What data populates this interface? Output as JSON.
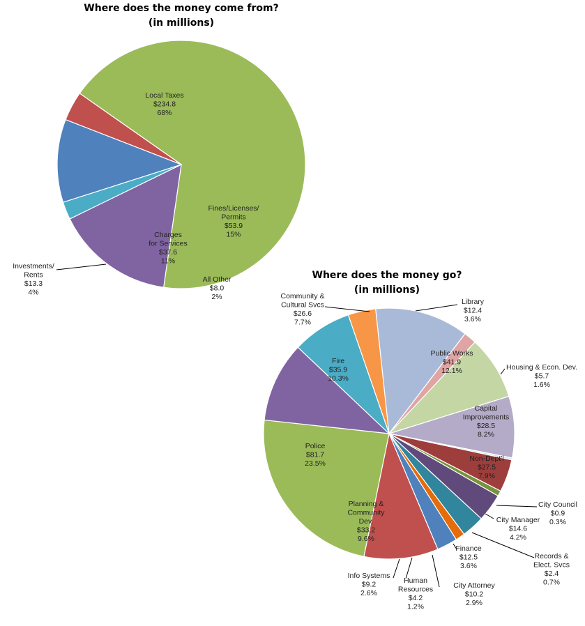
{
  "chart_data": [
    {
      "type": "pie",
      "title": "Where does the money come from?",
      "subtitle": "(in millions)",
      "slices": [
        {
          "label": [
            "Local Taxes"
          ],
          "value": 234.8,
          "value_label": "$234.8",
          "percent_label": "68%",
          "color": "#9BBB59"
        },
        {
          "label": [
            "Fines/Licenses/",
            "Permits"
          ],
          "value": 53.9,
          "value_label": "$53.9",
          "percent_label": "15%",
          "color": "#8064A2"
        },
        {
          "label": [
            "All Other"
          ],
          "value": 8.0,
          "value_label": "$8.0",
          "percent_label": "2%",
          "color": "#4BACC6"
        },
        {
          "label": [
            "Charges",
            "for Services"
          ],
          "value": 37.6,
          "value_label": "$37.6",
          "percent_label": "11%",
          "color": "#4F81BD"
        },
        {
          "label": [
            "Investments/",
            "Rents"
          ],
          "value": 13.3,
          "value_label": "$13.3",
          "percent_label": "4%",
          "color": "#C0504D"
        }
      ]
    },
    {
      "type": "pie",
      "title": "Where does the money go?",
      "subtitle": "(in millions)",
      "slices": [
        {
          "label": [
            "Library"
          ],
          "value": 12.4,
          "value_label": "$12.4",
          "percent_label": "3.6%",
          "color": "#F79646"
        },
        {
          "label": [
            "Public Works"
          ],
          "value": 41.9,
          "value_label": "$41.9",
          "percent_label": "12.1%",
          "color": "#A9BAD8"
        },
        {
          "label": [
            "Housing & Econ. Dev."
          ],
          "value": 5.7,
          "value_label": "$5.7",
          "percent_label": "1.6%",
          "color": "#E0A4A4"
        },
        {
          "label": [
            "Capital",
            "Improvements"
          ],
          "value": 28.5,
          "value_label": "$28.5",
          "percent_label": "8.2%",
          "color": "#C4D6A4"
        },
        {
          "label": [
            "Non-Dept'l"
          ],
          "value": 27.5,
          "value_label": "$27.5",
          "percent_label": "7.9%",
          "color": "#B4ABC8"
        },
        {
          "label": [
            "City Council"
          ],
          "value": 0.9,
          "value_label": "$0.9",
          "percent_label": "0.3%",
          "color": "#D8E8EE"
        },
        {
          "label": [
            "City Manager"
          ],
          "value": 14.6,
          "value_label": "$14.6",
          "percent_label": "4.2%",
          "color": "#9E3E3C"
        },
        {
          "label": [
            "Records &",
            "Elect. Svcs"
          ],
          "value": 2.4,
          "value_label": "$2.4",
          "percent_label": "0.7%",
          "color": "#77933C"
        },
        {
          "label": [
            "Finance"
          ],
          "value": 12.5,
          "value_label": "$12.5",
          "percent_label": "3.6%",
          "color": "#604A7B"
        },
        {
          "label": [
            "City Attorney"
          ],
          "value": 10.2,
          "value_label": "$10.2",
          "percent_label": "2.9%",
          "color": "#31859C"
        },
        {
          "label": [
            "Human",
            "Resources"
          ],
          "value": 4.2,
          "value_label": "$4.2",
          "percent_label": "1.2%",
          "color": "#E46C0A"
        },
        {
          "label": [
            "Info Systems"
          ],
          "value": 9.2,
          "value_label": "$9.2",
          "percent_label": "2.6%",
          "color": "#4F81BD"
        },
        {
          "label": [
            "Planning &",
            "Community",
            "Dev."
          ],
          "value": 33.2,
          "value_label": "$33.2",
          "percent_label": "9.6%",
          "color": "#C0504D"
        },
        {
          "label": [
            "Police"
          ],
          "value": 81.7,
          "value_label": "$81.7",
          "percent_label": "23.5%",
          "color": "#9BBB59"
        },
        {
          "label": [
            "Fire"
          ],
          "value": 35.9,
          "value_label": "$35.9",
          "percent_label": "10.3%",
          "color": "#8064A2"
        },
        {
          "label": [
            "Community &",
            "Cultural Svcs"
          ],
          "value": 26.6,
          "value_label": "$26.6",
          "percent_label": "7.7%",
          "color": "#4BACC6"
        }
      ]
    }
  ]
}
